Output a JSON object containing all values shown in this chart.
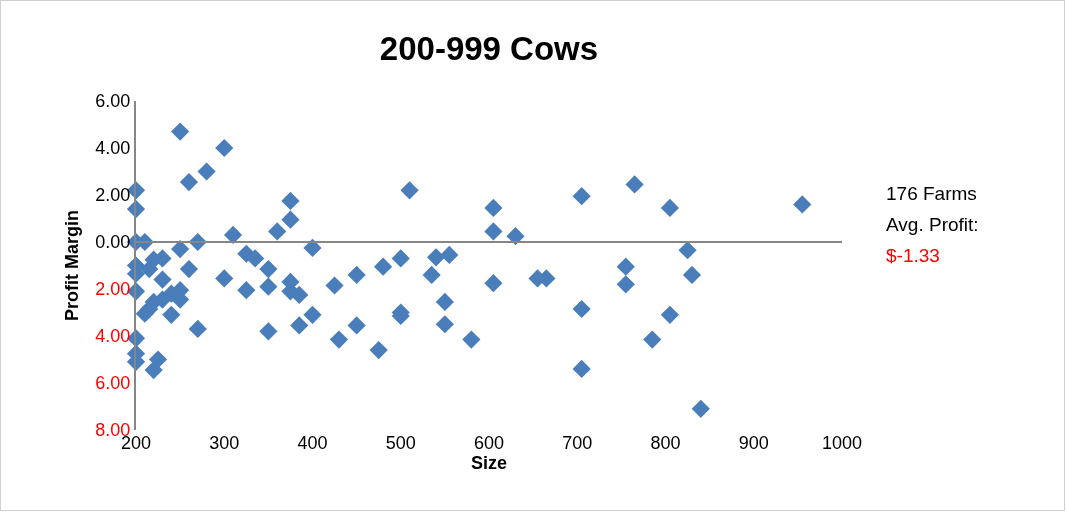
{
  "chart_data": {
    "type": "scatter",
    "title": "200-999 Cows",
    "xlabel": "Size",
    "ylabel": "Profit Margin",
    "annotations": [
      "176 Farms",
      "Avg. Profit:",
      "$-1.33"
    ],
    "x": [
      200,
      200,
      200,
      210,
      200,
      200,
      200,
      200,
      200,
      200,
      250,
      300,
      280,
      260,
      375,
      375,
      360,
      310,
      250,
      270,
      400,
      325,
      335,
      220,
      230,
      260,
      350,
      215,
      230,
      300,
      325,
      350,
      375,
      375,
      385,
      425,
      450,
      480,
      500,
      540,
      555,
      535,
      550,
      550,
      500,
      500,
      475,
      450,
      430,
      400,
      385,
      350,
      270,
      250,
      250,
      240,
      230,
      220,
      210,
      215,
      240,
      225,
      220,
      510,
      605,
      605,
      630,
      605,
      580,
      655,
      665,
      705,
      705,
      705,
      755,
      755,
      765,
      805,
      805,
      785,
      825,
      830,
      840,
      955
    ],
    "values": [
      2.2,
      1.4,
      0,
      0,
      -1.0,
      -1.35,
      -2.1,
      -4.1,
      -4.75,
      -5.1,
      4.7,
      4.0,
      3.0,
      2.55,
      1.75,
      0.95,
      0.45,
      0.3,
      -0.3,
      0,
      -0.25,
      -0.5,
      -0.7,
      -0.75,
      -0.7,
      -1.15,
      -1.15,
      -1.15,
      -1.6,
      -1.55,
      -2.05,
      -1.9,
      -1.7,
      -2.1,
      -2.25,
      -1.85,
      -1.4,
      -1.05,
      -0.7,
      -0.65,
      -0.55,
      -1.4,
      -2.55,
      -3.5,
      -3.0,
      -3.15,
      -4.6,
      -3.55,
      -4.15,
      -3.1,
      -3.55,
      -3.8,
      -3.7,
      -2.05,
      -2.45,
      -2.2,
      -2.45,
      -2.55,
      -3.05,
      -2.85,
      -3.1,
      -5.0,
      -5.45,
      2.2,
      1.45,
      0.45,
      0.25,
      -1.75,
      -4.15,
      -1.55,
      -1.55,
      1.95,
      -2.85,
      -5.4,
      -1.05,
      -1.8,
      2.45,
      1.45,
      -3.1,
      -4.15,
      -0.35,
      -1.4,
      -7.1,
      1.6
    ],
    "color": "#4a7ebb",
    "marker": "diamond",
    "legend": false,
    "grid": false,
    "xlim": [
      200,
      1000
    ],
    "xticks": [
      200,
      300,
      400,
      500,
      600,
      700,
      800,
      900,
      1000
    ],
    "ylim": [
      -8,
      6
    ],
    "yticks": [
      {
        "value": -8,
        "label": "8.00"
      },
      {
        "value": -6,
        "label": "6.00"
      },
      {
        "value": -4,
        "label": "4.00"
      },
      {
        "value": -2,
        "label": "2.00"
      },
      {
        "value": 0,
        "label": "0.00"
      },
      {
        "value": 2,
        "label": "2.00"
      },
      {
        "value": 4,
        "label": "4.00"
      },
      {
        "value": 6,
        "label": "6.00"
      }
    ],
    "ref_lines": [
      {
        "axis": "y",
        "value": 0,
        "label": null,
        "color": "#868686"
      }
    ]
  }
}
